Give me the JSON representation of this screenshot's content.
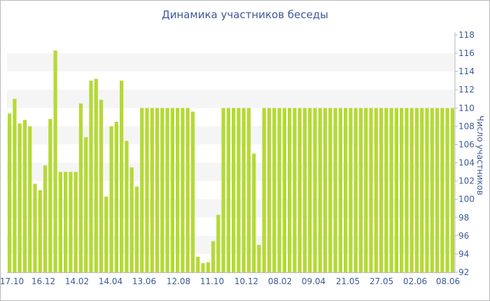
{
  "chart_data": {
    "type": "bar",
    "title": "Динамика участников беседы",
    "ylabel": "Число участников",
    "xlabel": "",
    "ylim": [
      92,
      118
    ],
    "yticks": [
      "92",
      "94",
      "96",
      "98",
      "100",
      "102",
      "104",
      "106",
      "108",
      "110",
      "112",
      "114",
      "116",
      "118"
    ],
    "xtick_labels": [
      "17.10",
      "16.12",
      "14.02",
      "14.04",
      "13.06",
      "12.08",
      "11.10",
      "10.12",
      "08.02",
      "09.04",
      "21.05",
      "27.05",
      "02.06",
      "08.06"
    ],
    "values": [
      109.4,
      111,
      108.3,
      108.7,
      108,
      101.7,
      101,
      103.7,
      108.8,
      116.3,
      103,
      103,
      103,
      103,
      110.5,
      106.8,
      113,
      113.2,
      110.9,
      100.3,
      108,
      108.5,
      113,
      106.4,
      103.5,
      101.4,
      110,
      110,
      110,
      110,
      110,
      110,
      110,
      110,
      110,
      110,
      109.6,
      93.7,
      93,
      93.1,
      95.4,
      98.3,
      110,
      110,
      110,
      110,
      110,
      110,
      105,
      95,
      110,
      110,
      110,
      110,
      110,
      110,
      110,
      110,
      110,
      110,
      110,
      110,
      110,
      110,
      110,
      110,
      110,
      110,
      110,
      110,
      110,
      110,
      110,
      110,
      110,
      110,
      110,
      110,
      110,
      110,
      110,
      110,
      110,
      110,
      110,
      110,
      110,
      110
    ],
    "grid": "horizontal-bands",
    "colors": {
      "bar": "#b5d936",
      "title": "#3d5a98",
      "axis_text": "#3d5a98",
      "band": "#f5f5f5",
      "axis": "#b9b9b9"
    }
  }
}
